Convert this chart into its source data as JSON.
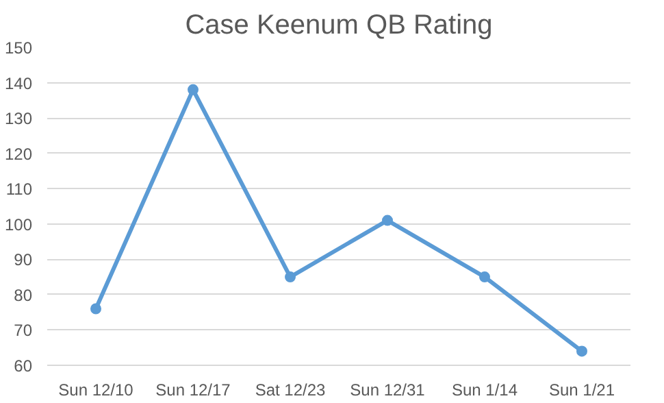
{
  "chart_data": {
    "type": "line",
    "title": "Case Keenum QB Rating",
    "categories": [
      "Sun 12/10",
      "Sun 12/17",
      "Sat 12/23",
      "Sun 12/31",
      "Sun 1/14",
      "Sun 1/21"
    ],
    "series": [
      {
        "color": "#5b9bd5",
        "values": [
          76,
          138,
          85,
          101,
          85,
          64
        ]
      }
    ],
    "ylim": [
      60,
      150
    ],
    "yticks": [
      60,
      70,
      80,
      90,
      100,
      110,
      120,
      130,
      140,
      150
    ],
    "grid": "y",
    "marker": "circle",
    "line_style": "solid"
  }
}
